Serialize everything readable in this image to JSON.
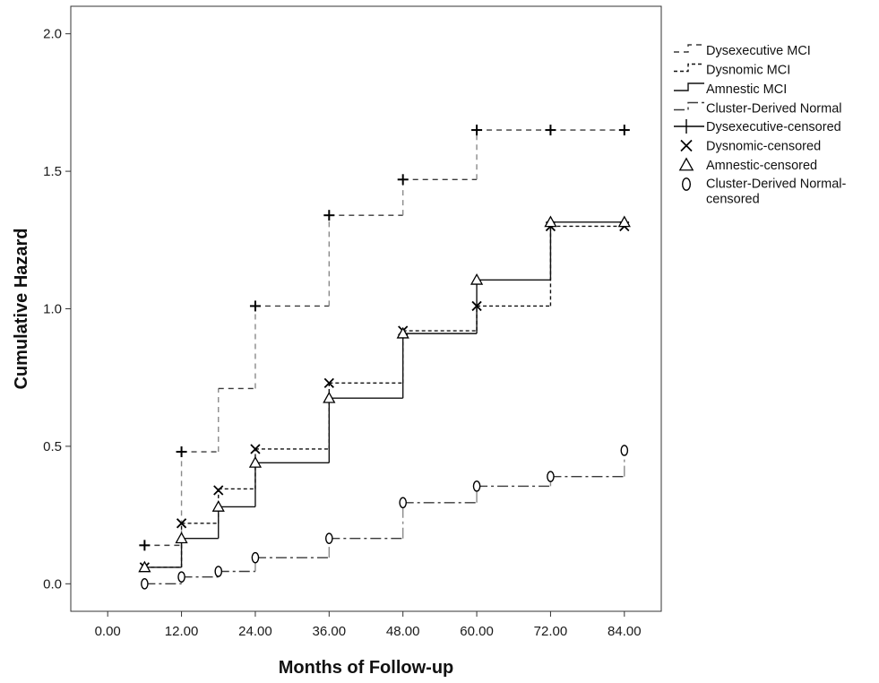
{
  "chart_data": {
    "type": "line",
    "step": true,
    "xlabel": "Months of Follow-up",
    "ylabel": "Cumulative Hazard",
    "xlim": [
      -6,
      90
    ],
    "ylim": [
      -0.1,
      2.1
    ],
    "xticks": [
      0,
      12,
      24,
      36,
      48,
      60,
      72,
      84
    ],
    "xtick_labels": [
      "0.00",
      "12.00",
      "24.00",
      "36.00",
      "48.00",
      "60.00",
      "72.00",
      "84.00"
    ],
    "yticks": [
      0.0,
      0.5,
      1.0,
      1.5,
      2.0
    ],
    "ytick_labels": [
      "0.0",
      "0.5",
      "1.0",
      "1.5",
      "2.0"
    ],
    "grid": false,
    "legend_position": "right",
    "series": [
      {
        "name": "Dysexecutive MCI",
        "censored_name": "Dysexecutive-censored",
        "dash": "medium-dash",
        "color": "#3a3a3a",
        "step_color": "#8a8a8a",
        "marker": "plus",
        "steps": [
          [
            6,
            0.14
          ],
          [
            12,
            0.48
          ],
          [
            18,
            0.71
          ],
          [
            24,
            1.01
          ],
          [
            36,
            1.34
          ],
          [
            48,
            1.47
          ],
          [
            60,
            1.65
          ],
          [
            72,
            1.65
          ],
          [
            84,
            1.65
          ]
        ],
        "censored": [
          [
            6,
            0.14
          ],
          [
            12,
            0.48
          ],
          [
            24,
            1.01
          ],
          [
            36,
            1.34
          ],
          [
            48,
            1.47
          ],
          [
            60,
            1.65
          ],
          [
            72,
            1.65
          ],
          [
            84,
            1.65
          ]
        ]
      },
      {
        "name": "Dysnomic MCI",
        "censored_name": "Dysnomic-censored",
        "dash": "short-dash",
        "color": "#111111",
        "step_color": "#111111",
        "marker": "x",
        "steps": [
          [
            6,
            0.06
          ],
          [
            12,
            0.22
          ],
          [
            18,
            0.345
          ],
          [
            24,
            0.49
          ],
          [
            36,
            0.73
          ],
          [
            48,
            0.92
          ],
          [
            60,
            1.01
          ],
          [
            72,
            1.3
          ],
          [
            84,
            1.3
          ]
        ],
        "censored": [
          [
            6,
            0.06
          ],
          [
            12,
            0.22
          ],
          [
            18,
            0.34
          ],
          [
            24,
            0.49
          ],
          [
            36,
            0.73
          ],
          [
            48,
            0.92
          ],
          [
            60,
            1.01
          ],
          [
            72,
            1.3
          ],
          [
            84,
            1.3
          ]
        ]
      },
      {
        "name": "Amnestic MCI",
        "censored_name": "Amnestic-censored",
        "dash": "solid",
        "color": "#111111",
        "step_color": "#111111",
        "marker": "triangle",
        "steps": [
          [
            6,
            0.06
          ],
          [
            12,
            0.165
          ],
          [
            18,
            0.28
          ],
          [
            24,
            0.44
          ],
          [
            36,
            0.675
          ],
          [
            48,
            0.91
          ],
          [
            60,
            1.105
          ],
          [
            72,
            1.315
          ],
          [
            84,
            1.315
          ]
        ],
        "censored": [
          [
            6,
            0.06
          ],
          [
            12,
            0.165
          ],
          [
            18,
            0.28
          ],
          [
            24,
            0.44
          ],
          [
            36,
            0.675
          ],
          [
            48,
            0.91
          ],
          [
            60,
            1.105
          ],
          [
            72,
            1.315
          ],
          [
            84,
            1.315
          ]
        ]
      },
      {
        "name": "Cluster-Derived Normal",
        "censored_name": "Cluster-Derived Normal-censored",
        "dash": "dash-dot",
        "color": "#3a3a3a",
        "step_color": "#8a8a8a",
        "marker": "diamond",
        "steps": [
          [
            6,
            0.0
          ],
          [
            12,
            0.025
          ],
          [
            18,
            0.045
          ],
          [
            24,
            0.095
          ],
          [
            36,
            0.165
          ],
          [
            48,
            0.295
          ],
          [
            60,
            0.355
          ],
          [
            72,
            0.39
          ],
          [
            84,
            0.485
          ]
        ],
        "censored": [
          [
            6,
            0.0
          ],
          [
            12,
            0.025
          ],
          [
            18,
            0.045
          ],
          [
            24,
            0.095
          ],
          [
            36,
            0.165
          ],
          [
            48,
            0.295
          ],
          [
            60,
            0.355
          ],
          [
            72,
            0.39
          ],
          [
            84,
            0.485
          ]
        ]
      }
    ]
  }
}
